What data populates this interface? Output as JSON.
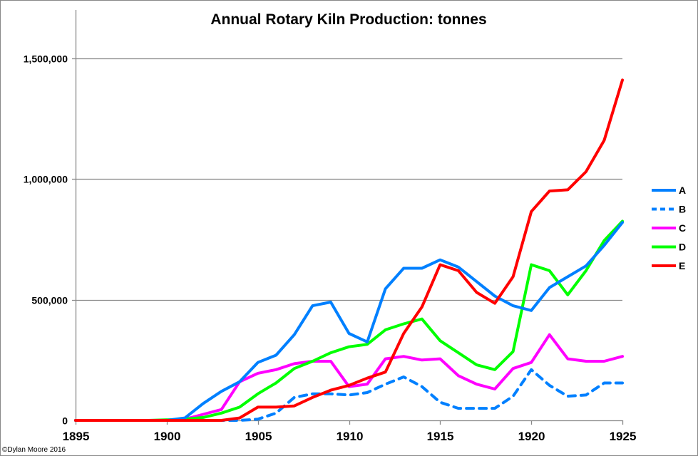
{
  "chart_data": {
    "type": "line",
    "title": "Annual Rotary Kiln Production: tonnes",
    "xlabel": "",
    "ylabel": "",
    "xlim": [
      1895,
      1925
    ],
    "ylim": [
      0,
      1700000
    ],
    "grid": "horizontal",
    "legend_position": "right",
    "x_ticks": [
      "1895",
      "1900",
      "1905",
      "1910",
      "1915",
      "1920",
      "1925"
    ],
    "x_tick_values": [
      1895,
      1900,
      1905,
      1910,
      1915,
      1920,
      1925
    ],
    "y_ticks": [
      "0",
      "500,000",
      "1,000,000",
      "1,500,000"
    ],
    "y_tick_values": [
      0,
      500000,
      1000000,
      1500000
    ],
    "x": [
      1895,
      1896,
      1897,
      1898,
      1899,
      1900,
      1901,
      1902,
      1903,
      1904,
      1905,
      1906,
      1907,
      1908,
      1909,
      1910,
      1911,
      1912,
      1913,
      1914,
      1915,
      1916,
      1917,
      1918,
      1919,
      1920,
      1921,
      1922,
      1923,
      1924,
      1925
    ],
    "series": [
      {
        "name": "A",
        "color": "#0080ff",
        "dash": "solid",
        "values": [
          0,
          0,
          0,
          0,
          0,
          0,
          10000,
          70000,
          120000,
          160000,
          240000,
          270000,
          355000,
          475000,
          490000,
          360000,
          325000,
          545000,
          630000,
          630000,
          665000,
          635000,
          575000,
          515000,
          475000,
          455000,
          550000,
          595000,
          640000,
          725000,
          820000
        ]
      },
      {
        "name": "B",
        "color": "#0080ff",
        "dash": "dashed",
        "values": [
          0,
          0,
          0,
          0,
          0,
          0,
          0,
          0,
          0,
          0,
          5000,
          30000,
          95000,
          110000,
          110000,
          105000,
          115000,
          150000,
          180000,
          140000,
          75000,
          50000,
          50000,
          50000,
          100000,
          210000,
          145000,
          100000,
          105000,
          155000,
          155000
        ]
      },
      {
        "name": "C",
        "color": "#ff00ff",
        "dash": "solid",
        "values": [
          0,
          0,
          0,
          0,
          0,
          0,
          5000,
          25000,
          45000,
          160000,
          195000,
          210000,
          235000,
          245000,
          245000,
          140000,
          150000,
          255000,
          265000,
          250000,
          255000,
          185000,
          150000,
          130000,
          215000,
          240000,
          355000,
          255000,
          245000,
          245000,
          265000
        ]
      },
      {
        "name": "D",
        "color": "#00ff00",
        "dash": "solid",
        "values": [
          0,
          0,
          0,
          0,
          0,
          2000,
          5000,
          12000,
          30000,
          55000,
          110000,
          155000,
          215000,
          245000,
          280000,
          305000,
          315000,
          375000,
          400000,
          420000,
          330000,
          280000,
          230000,
          210000,
          285000,
          645000,
          620000,
          520000,
          620000,
          745000,
          825000
        ]
      },
      {
        "name": "E",
        "color": "#ff0000",
        "dash": "solid",
        "values": [
          0,
          0,
          0,
          0,
          0,
          0,
          0,
          0,
          0,
          10000,
          55000,
          55000,
          60000,
          95000,
          125000,
          145000,
          175000,
          200000,
          360000,
          470000,
          645000,
          620000,
          530000,
          485000,
          595000,
          865000,
          950000,
          955000,
          1030000,
          1160000,
          1410000
        ]
      }
    ],
    "annotations": [
      "©Dylan Moore 2016"
    ]
  }
}
